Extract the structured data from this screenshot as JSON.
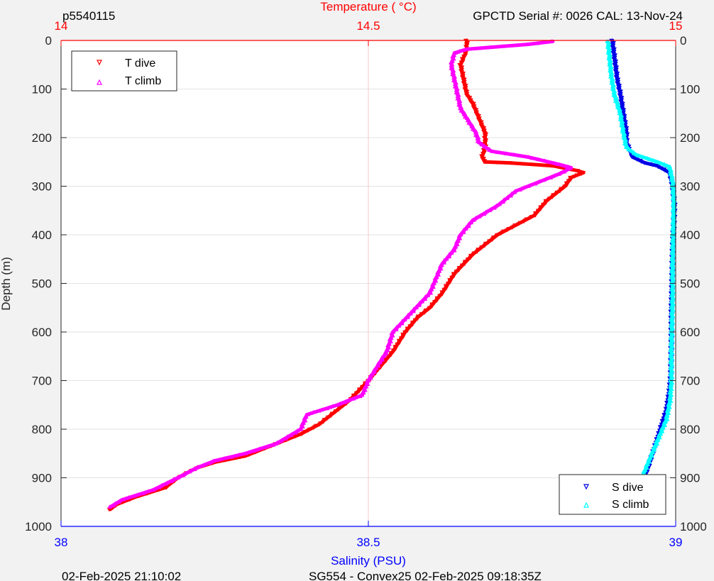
{
  "header": {
    "profile_id": "p5540115",
    "instrument": "GPCTD Serial #: 0026 CAL: 13-Nov-24"
  },
  "footer": {
    "left": "02-Feb-2025 21:10:02",
    "center": "SG554 - Convex25 02-Feb-2025 09:18:35Z"
  },
  "colors": {
    "t_dive": "#ff0000",
    "t_climb": "#ff00ff",
    "s_dive": "#0000e6",
    "s_climb": "#00ffff",
    "temp_axis": "#ff0000",
    "sal_axis": "#0000ff",
    "depth_axis": "#262626"
  },
  "chart_data": {
    "type": "line",
    "ylabel": "Depth (m)",
    "ylim": [
      1000,
      0
    ],
    "y_reversed": true,
    "y_ticks": [
      "0",
      "100",
      "200",
      "300",
      "400",
      "500",
      "600",
      "700",
      "800",
      "900",
      "1000"
    ],
    "temp_axis": {
      "label": "Temperature (    °C)",
      "lim": [
        14,
        15
      ],
      "ticks": [
        "14",
        "14.5",
        "15"
      ],
      "position": "top"
    },
    "sal_axis": {
      "label": "Salinity (PSU)",
      "lim": [
        38,
        39
      ],
      "ticks": [
        "38",
        "38.5",
        "39"
      ],
      "position": "bottom"
    },
    "grid": true,
    "legends": [
      {
        "placement": "top-left",
        "entries": [
          "T dive",
          "T climb"
        ]
      },
      {
        "placement": "bottom-right",
        "entries": [
          "S dive",
          "S climb"
        ]
      }
    ],
    "series": [
      {
        "name": "T dive",
        "axis": "temperature",
        "marker": "triangle-down",
        "points": [
          [
            14.66,
            0
          ],
          [
            14.66,
            20
          ],
          [
            14.65,
            50
          ],
          [
            14.655,
            80
          ],
          [
            14.66,
            110
          ],
          [
            14.67,
            130
          ],
          [
            14.68,
            160
          ],
          [
            14.69,
            190
          ],
          [
            14.69,
            220
          ],
          [
            14.685,
            240
          ],
          [
            14.69,
            250
          ],
          [
            14.73,
            252
          ],
          [
            14.8,
            258
          ],
          [
            14.84,
            268
          ],
          [
            14.85,
            272
          ],
          [
            14.83,
            282
          ],
          [
            14.82,
            300
          ],
          [
            14.79,
            330
          ],
          [
            14.77,
            360
          ],
          [
            14.74,
            380
          ],
          [
            14.71,
            400
          ],
          [
            14.67,
            440
          ],
          [
            14.64,
            480
          ],
          [
            14.62,
            520
          ],
          [
            14.6,
            550
          ],
          [
            14.58,
            570
          ],
          [
            14.56,
            600
          ],
          [
            14.54,
            640
          ],
          [
            14.52,
            670
          ],
          [
            14.5,
            700
          ],
          [
            14.47,
            740
          ],
          [
            14.45,
            760
          ],
          [
            14.42,
            790
          ],
          [
            14.39,
            810
          ],
          [
            14.35,
            830
          ],
          [
            14.3,
            855
          ],
          [
            14.25,
            868
          ],
          [
            14.22,
            880
          ],
          [
            14.19,
            900
          ],
          [
            14.17,
            920
          ],
          [
            14.12,
            940
          ],
          [
            14.09,
            955
          ],
          [
            14.08,
            965
          ]
        ]
      },
      {
        "name": "T climb",
        "axis": "temperature",
        "marker": "triangle-up",
        "points": [
          [
            14.8,
            2
          ],
          [
            14.76,
            8
          ],
          [
            14.7,
            14
          ],
          [
            14.66,
            18
          ],
          [
            14.64,
            26
          ],
          [
            14.635,
            50
          ],
          [
            14.64,
            80
          ],
          [
            14.645,
            110
          ],
          [
            14.65,
            140
          ],
          [
            14.66,
            160
          ],
          [
            14.675,
            190
          ],
          [
            14.68,
            210
          ],
          [
            14.7,
            228
          ],
          [
            14.76,
            240
          ],
          [
            14.81,
            255
          ],
          [
            14.83,
            262
          ],
          [
            14.81,
            275
          ],
          [
            14.78,
            290
          ],
          [
            14.74,
            310
          ],
          [
            14.71,
            340
          ],
          [
            14.67,
            370
          ],
          [
            14.65,
            400
          ],
          [
            14.64,
            430
          ],
          [
            14.62,
            460
          ],
          [
            14.61,
            490
          ],
          [
            14.6,
            520
          ],
          [
            14.57,
            560
          ],
          [
            14.54,
            600
          ],
          [
            14.53,
            640
          ],
          [
            14.51,
            680
          ],
          [
            14.5,
            700
          ],
          [
            14.49,
            730
          ],
          [
            14.45,
            750
          ],
          [
            14.4,
            770
          ],
          [
            14.39,
            800
          ],
          [
            14.35,
            830
          ],
          [
            14.3,
            850
          ],
          [
            14.25,
            865
          ],
          [
            14.22,
            880
          ],
          [
            14.19,
            900
          ],
          [
            14.15,
            925
          ],
          [
            14.1,
            945
          ],
          [
            14.08,
            960
          ]
        ]
      },
      {
        "name": "S dive",
        "axis": "salinity",
        "marker": "triangle-down",
        "points": [
          [
            38.897,
            0
          ],
          [
            38.9,
            30
          ],
          [
            38.905,
            80
          ],
          [
            38.91,
            110
          ],
          [
            38.915,
            150
          ],
          [
            38.92,
            190
          ],
          [
            38.92,
            210
          ],
          [
            38.93,
            240
          ],
          [
            38.95,
            252
          ],
          [
            38.97,
            258
          ],
          [
            38.99,
            272
          ],
          [
            38.995,
            300
          ],
          [
            38.998,
            340
          ],
          [
            38.997,
            380
          ],
          [
            38.995,
            430
          ],
          [
            38.994,
            500
          ],
          [
            38.993,
            560
          ],
          [
            38.993,
            620
          ],
          [
            38.992,
            690
          ],
          [
            38.99,
            720
          ],
          [
            38.985,
            760
          ],
          [
            38.975,
            800
          ],
          [
            38.965,
            840
          ],
          [
            38.955,
            880
          ],
          [
            38.945,
            910
          ],
          [
            38.935,
            950
          ],
          [
            38.93,
            965
          ]
        ]
      },
      {
        "name": "S climb",
        "axis": "salinity",
        "marker": "triangle-up",
        "points": [
          [
            38.89,
            2
          ],
          [
            38.892,
            30
          ],
          [
            38.895,
            70
          ],
          [
            38.9,
            110
          ],
          [
            38.91,
            150
          ],
          [
            38.915,
            190
          ],
          [
            38.92,
            220
          ],
          [
            38.935,
            235
          ],
          [
            38.97,
            250
          ],
          [
            38.99,
            260
          ],
          [
            38.995,
            290
          ],
          [
            38.997,
            330
          ],
          [
            38.996,
            400
          ],
          [
            38.995,
            460
          ],
          [
            38.995,
            520
          ],
          [
            38.994,
            580
          ],
          [
            38.993,
            640
          ],
          [
            38.993,
            700
          ],
          [
            38.991,
            740
          ],
          [
            38.985,
            780
          ],
          [
            38.975,
            810
          ],
          [
            38.965,
            840
          ],
          [
            38.955,
            870
          ],
          [
            38.945,
            900
          ],
          [
            38.935,
            935
          ],
          [
            38.93,
            960
          ]
        ]
      }
    ]
  }
}
